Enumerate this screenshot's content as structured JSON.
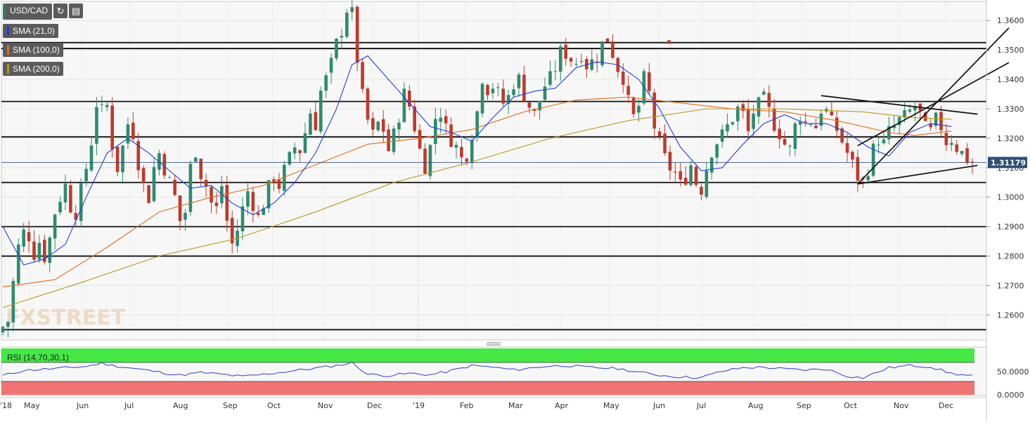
{
  "toolbar": {
    "symbol": "USD/CAD",
    "refresh_icon": "refresh-icon",
    "chart_type_icon": "bar-chart-icon"
  },
  "indicators": [
    {
      "label": "SMA (21,0)",
      "color": "#1f3fe0"
    },
    {
      "label": "SMA (100,0)",
      "color": "#e36c1b"
    },
    {
      "label": "SMA (200,0)",
      "color": "#b49a1e"
    }
  ],
  "rsi": {
    "label": "RSI (14,70,30,1)"
  },
  "watermark": "FXSTREET",
  "colors": {
    "up": "#2e8b6e",
    "down": "#c0392b",
    "sma21": "#1f3fe0",
    "sma100": "#e36c1b",
    "sma200": "#b49a1e",
    "rsi": "#2d3fd0",
    "overbought": "#45e845",
    "oversold": "#f07474"
  },
  "chart_data": {
    "type": "candlestick",
    "symbol": "USD/CAD",
    "last_price_label": "1.31179",
    "last_price": 1.31179,
    "ylim": [
      1.2515,
      1.3665
    ],
    "y_ticks": [
      "1.3600",
      "1.3500",
      "1.3400",
      "1.3300",
      "1.3200",
      "1.3100",
      "1.3000",
      "1.2900",
      "1.2800",
      "1.2700",
      "1.2600"
    ],
    "x_ticks": [
      "'18",
      "May",
      "Jun",
      "Jul",
      "Aug",
      "Sep",
      "Oct",
      "Nov",
      "Dec",
      "'19",
      "Feb",
      "Mar",
      "Apr",
      "May",
      "Jun",
      "Jul",
      "Aug",
      "Sep",
      "Oct",
      "Nov",
      "Dec"
    ],
    "horizontal_levels": [
      1.3525,
      1.3505,
      1.3325,
      1.3205,
      1.305,
      1.29,
      1.28,
      1.255
    ],
    "close_path": [
      [
        0,
        1.256
      ],
      [
        1,
        1.258
      ],
      [
        2,
        1.271
      ],
      [
        3,
        1.283
      ],
      [
        4,
        1.288
      ],
      [
        5,
        1.287
      ],
      [
        6,
        1.281
      ],
      [
        7,
        1.285
      ],
      [
        8,
        1.28
      ],
      [
        9,
        1.286
      ],
      [
        10,
        1.295
      ],
      [
        11,
        1.3
      ],
      [
        12,
        1.304
      ],
      [
        13,
        1.297
      ],
      [
        14,
        1.295
      ],
      [
        15,
        1.302
      ],
      [
        16,
        1.31
      ],
      [
        17,
        1.319
      ],
      [
        18,
        1.332
      ],
      [
        19,
        1.329
      ],
      [
        20,
        1.331
      ],
      [
        21,
        1.318
      ],
      [
        22,
        1.31
      ],
      [
        23,
        1.317
      ],
      [
        24,
        1.325
      ],
      [
        25,
        1.322
      ],
      [
        26,
        1.312
      ],
      [
        27,
        1.304
      ],
      [
        28,
        1.3
      ],
      [
        29,
        1.31
      ],
      [
        30,
        1.315
      ],
      [
        31,
        1.31
      ],
      [
        32,
        1.305
      ],
      [
        33,
        1.3
      ],
      [
        34,
        1.292
      ],
      [
        35,
        1.295
      ],
      [
        36,
        1.31
      ],
      [
        37,
        1.316
      ],
      [
        38,
        1.308
      ],
      [
        39,
        1.304
      ],
      [
        40,
        1.298
      ],
      [
        41,
        1.296
      ],
      [
        42,
        1.304
      ],
      [
        43,
        1.292
      ],
      [
        44,
        1.284
      ],
      [
        45,
        1.289
      ],
      [
        46,
        1.296
      ],
      [
        47,
        1.302
      ],
      [
        48,
        1.298
      ],
      [
        49,
        1.293
      ],
      [
        50,
        1.298
      ],
      [
        51,
        1.303
      ],
      [
        52,
        1.307
      ],
      [
        53,
        1.304
      ],
      [
        54,
        1.309
      ],
      [
        55,
        1.313
      ],
      [
        56,
        1.317
      ],
      [
        57,
        1.316
      ],
      [
        58,
        1.322
      ],
      [
        59,
        1.329
      ],
      [
        60,
        1.325
      ],
      [
        61,
        1.336
      ],
      [
        62,
        1.34
      ],
      [
        63,
        1.345
      ],
      [
        64,
        1.352
      ],
      [
        65,
        1.357
      ],
      [
        66,
        1.364
      ],
      [
        67,
        1.362
      ],
      [
        68,
        1.347
      ],
      [
        69,
        1.334
      ],
      [
        70,
        1.326
      ],
      [
        71,
        1.321
      ],
      [
        72,
        1.325
      ],
      [
        73,
        1.323
      ],
      [
        74,
        1.316
      ],
      [
        75,
        1.321
      ],
      [
        76,
        1.328
      ],
      [
        77,
        1.335
      ],
      [
        78,
        1.331
      ],
      [
        79,
        1.324
      ],
      [
        80,
        1.316
      ],
      [
        81,
        1.311
      ],
      [
        82,
        1.317
      ],
      [
        83,
        1.327
      ],
      [
        84,
        1.329
      ],
      [
        85,
        1.323
      ],
      [
        86,
        1.32
      ],
      [
        87,
        1.317
      ],
      [
        88,
        1.313
      ],
      [
        89,
        1.315
      ],
      [
        90,
        1.322
      ],
      [
        91,
        1.329
      ],
      [
        92,
        1.341
      ],
      [
        93,
        1.337
      ],
      [
        94,
        1.338
      ],
      [
        95,
        1.335
      ],
      [
        96,
        1.332
      ],
      [
        97,
        1.334
      ],
      [
        98,
        1.339
      ],
      [
        99,
        1.34
      ],
      [
        100,
        1.335
      ],
      [
        101,
        1.331
      ],
      [
        102,
        1.328
      ],
      [
        103,
        1.333
      ],
      [
        104,
        1.338
      ],
      [
        105,
        1.34
      ],
      [
        106,
        1.344
      ],
      [
        107,
        1.349
      ],
      [
        108,
        1.349
      ],
      [
        109,
        1.347
      ],
      [
        110,
        1.346
      ],
      [
        111,
        1.349
      ],
      [
        112,
        1.345
      ],
      [
        113,
        1.346
      ],
      [
        114,
        1.348
      ],
      [
        115,
        1.352
      ],
      [
        116,
        1.354
      ],
      [
        117,
        1.349
      ],
      [
        118,
        1.344
      ],
      [
        119,
        1.341
      ],
      [
        120,
        1.332
      ],
      [
        121,
        1.327
      ],
      [
        122,
        1.331
      ],
      [
        123,
        1.34
      ],
      [
        124,
        1.335
      ],
      [
        125,
        1.324
      ],
      [
        126,
        1.318
      ],
      [
        127,
        1.313
      ],
      [
        128,
        1.31
      ],
      [
        129,
        1.308
      ],
      [
        130,
        1.304
      ],
      [
        131,
        1.307
      ],
      [
        132,
        1.311
      ],
      [
        133,
        1.305
      ],
      [
        134,
        1.303
      ],
      [
        135,
        1.31
      ],
      [
        136,
        1.316
      ],
      [
        137,
        1.319
      ],
      [
        138,
        1.321
      ],
      [
        139,
        1.324
      ],
      [
        140,
        1.327
      ],
      [
        141,
        1.33
      ],
      [
        142,
        1.328
      ],
      [
        143,
        1.322
      ],
      [
        144,
        1.329
      ],
      [
        145,
        1.331
      ],
      [
        146,
        1.333
      ],
      [
        147,
        1.329
      ],
      [
        148,
        1.325
      ],
      [
        149,
        1.322
      ],
      [
        150,
        1.318
      ],
      [
        151,
        1.316
      ],
      [
        152,
        1.324
      ],
      [
        153,
        1.328
      ],
      [
        154,
        1.325
      ],
      [
        155,
        1.326
      ],
      [
        156,
        1.324
      ],
      [
        157,
        1.33
      ],
      [
        158,
        1.329
      ],
      [
        159,
        1.325
      ],
      [
        160,
        1.323
      ],
      [
        161,
        1.319
      ],
      [
        162,
        1.315
      ],
      [
        163,
        1.311
      ],
      [
        164,
        1.307
      ],
      [
        165,
        1.305
      ],
      [
        166,
        1.31
      ],
      [
        167,
        1.316
      ],
      [
        168,
        1.32
      ],
      [
        169,
        1.318
      ],
      [
        170,
        1.322
      ],
      [
        171,
        1.324
      ],
      [
        172,
        1.326
      ],
      [
        173,
        1.327
      ],
      [
        174,
        1.329
      ],
      [
        175,
        1.331
      ],
      [
        176,
        1.328
      ],
      [
        177,
        1.323
      ],
      [
        178,
        1.322
      ],
      [
        179,
        1.326
      ],
      [
        180,
        1.324
      ],
      [
        181,
        1.319
      ],
      [
        182,
        1.32
      ],
      [
        183,
        1.317
      ],
      [
        184,
        1.315
      ],
      [
        185,
        1.313
      ],
      [
        186,
        1.312
      ]
    ],
    "sma21_path": [
      [
        0,
        1.29
      ],
      [
        4,
        1.277
      ],
      [
        8,
        1.279
      ],
      [
        12,
        1.284
      ],
      [
        16,
        1.3
      ],
      [
        20,
        1.315
      ],
      [
        24,
        1.32
      ],
      [
        28,
        1.315
      ],
      [
        32,
        1.309
      ],
      [
        36,
        1.303
      ],
      [
        40,
        1.304
      ],
      [
        44,
        1.298
      ],
      [
        48,
        1.294
      ],
      [
        52,
        1.298
      ],
      [
        56,
        1.305
      ],
      [
        60,
        1.315
      ],
      [
        64,
        1.33
      ],
      [
        67,
        1.345
      ],
      [
        70,
        1.348
      ],
      [
        74,
        1.34
      ],
      [
        78,
        1.332
      ],
      [
        82,
        1.324
      ],
      [
        86,
        1.322
      ],
      [
        90,
        1.319
      ],
      [
        94,
        1.327
      ],
      [
        98,
        1.334
      ],
      [
        102,
        1.336
      ],
      [
        106,
        1.337
      ],
      [
        110,
        1.344
      ],
      [
        114,
        1.346
      ],
      [
        118,
        1.345
      ],
      [
        122,
        1.34
      ],
      [
        126,
        1.33
      ],
      [
        130,
        1.317
      ],
      [
        134,
        1.309
      ],
      [
        138,
        1.31
      ],
      [
        142,
        1.318
      ],
      [
        146,
        1.325
      ],
      [
        150,
        1.328
      ],
      [
        154,
        1.325
      ],
      [
        158,
        1.325
      ],
      [
        162,
        1.322
      ],
      [
        166,
        1.317
      ],
      [
        170,
        1.314
      ],
      [
        174,
        1.322
      ],
      [
        178,
        1.325
      ],
      [
        182,
        1.324
      ]
    ],
    "sma100_path": [
      [
        0,
        1.2695
      ],
      [
        10,
        1.272
      ],
      [
        20,
        1.283
      ],
      [
        30,
        1.295
      ],
      [
        40,
        1.3
      ],
      [
        50,
        1.304
      ],
      [
        60,
        1.311
      ],
      [
        70,
        1.318
      ],
      [
        80,
        1.32
      ],
      [
        90,
        1.323
      ],
      [
        100,
        1.329
      ],
      [
        110,
        1.333
      ],
      [
        120,
        1.334
      ],
      [
        130,
        1.332
      ],
      [
        140,
        1.33
      ],
      [
        150,
        1.329
      ],
      [
        160,
        1.326
      ],
      [
        170,
        1.322
      ],
      [
        175,
        1.321
      ],
      [
        182,
        1.3225
      ]
    ],
    "sma200_path": [
      [
        0,
        1.2625
      ],
      [
        15,
        1.271
      ],
      [
        30,
        1.28
      ],
      [
        45,
        1.286
      ],
      [
        60,
        1.295
      ],
      [
        75,
        1.305
      ],
      [
        90,
        1.312
      ],
      [
        105,
        1.32
      ],
      [
        120,
        1.326
      ],
      [
        135,
        1.33
      ],
      [
        150,
        1.33
      ],
      [
        165,
        1.329
      ],
      [
        175,
        1.327
      ],
      [
        182,
        1.3265
      ]
    ],
    "trend_lines": [
      {
        "from": [
          164,
          1.3045
        ],
        "to": [
          187,
          1.3108
        ],
        "label": "support"
      },
      {
        "from": [
          157,
          1.3345
        ],
        "to": [
          187,
          1.3282
        ],
        "label": "resistance"
      },
      {
        "from": [
          164,
          1.3045
        ],
        "to": [
          193,
          1.3575
        ],
        "label": "channel-lower"
      },
      {
        "from": [
          164,
          1.3175
        ],
        "to": [
          193,
          1.3457
        ],
        "label": "channel-upper"
      }
    ],
    "rsi_path": [
      [
        0,
        37
      ],
      [
        4,
        49
      ],
      [
        10,
        53
      ],
      [
        16,
        58
      ],
      [
        19,
        65
      ],
      [
        21,
        60
      ],
      [
        26,
        52
      ],
      [
        30,
        45
      ],
      [
        34,
        38
      ],
      [
        38,
        44
      ],
      [
        42,
        40
      ],
      [
        46,
        35
      ],
      [
        50,
        40
      ],
      [
        55,
        47
      ],
      [
        60,
        54
      ],
      [
        64,
        60
      ],
      [
        67,
        66
      ],
      [
        70,
        40
      ],
      [
        74,
        37
      ],
      [
        78,
        42
      ],
      [
        82,
        39
      ],
      [
        86,
        48
      ],
      [
        90,
        60
      ],
      [
        94,
        56
      ],
      [
        98,
        50
      ],
      [
        104,
        58
      ],
      [
        108,
        60
      ],
      [
        112,
        56
      ],
      [
        118,
        53
      ],
      [
        122,
        45
      ],
      [
        126,
        38
      ],
      [
        130,
        34
      ],
      [
        134,
        33
      ],
      [
        138,
        47
      ],
      [
        142,
        55
      ],
      [
        146,
        56
      ],
      [
        150,
        52
      ],
      [
        154,
        50
      ],
      [
        158,
        52
      ],
      [
        162,
        36
      ],
      [
        165,
        32
      ],
      [
        170,
        55
      ],
      [
        174,
        60
      ],
      [
        178,
        57
      ],
      [
        182,
        42
      ],
      [
        186,
        36
      ]
    ],
    "rsi_ylim": [
      0,
      100
    ],
    "rsi_ticks": [
      "50.0000",
      "0.0000"
    ],
    "rsi_overbought": 70,
    "rsi_oversold": 30
  }
}
